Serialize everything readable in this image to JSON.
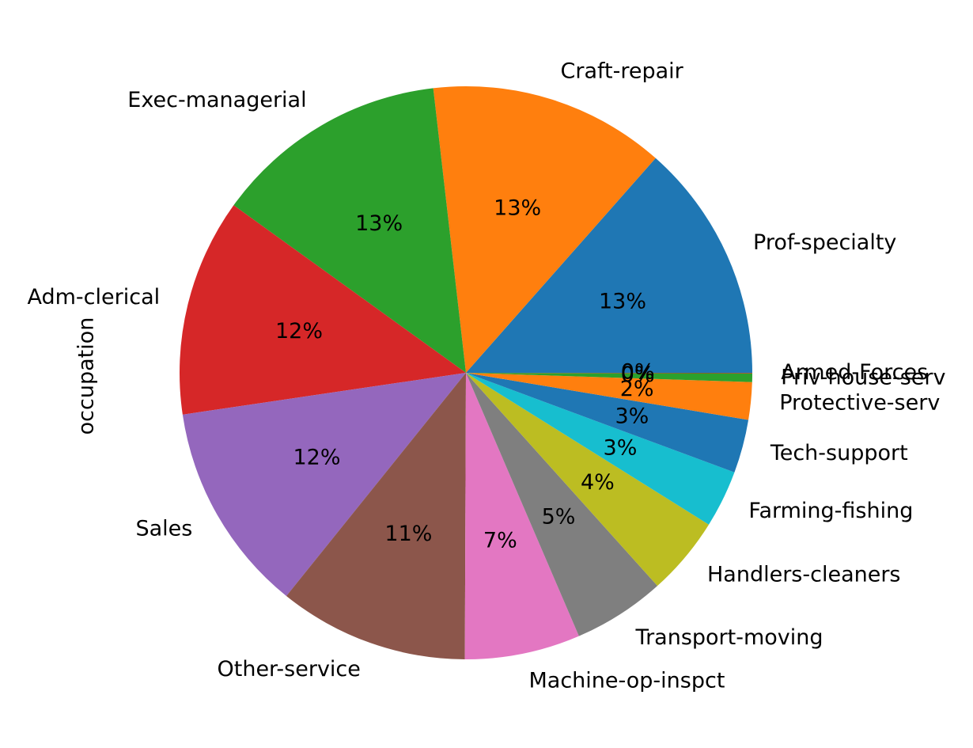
{
  "chart_data": {
    "type": "pie",
    "ylabel": "occupation",
    "autopct_format": "{pct}%",
    "categories": [
      "Prof-specialty",
      "Craft-repair",
      "Exec-managerial",
      "Adm-clerical",
      "Sales",
      "Other-service",
      "Machine-op-inspct",
      "Transport-moving",
      "Handlers-cleaners",
      "Farming-fishing",
      "Tech-support",
      "Protective-serv",
      "Priv-house-serv",
      "Armed-Forces"
    ],
    "values": [
      4140,
      4099,
      4066,
      3770,
      3650,
      3295,
      2002,
      1597,
      1370,
      994,
      928,
      649,
      149,
      9
    ],
    "pct_labels": [
      "13%",
      "13%",
      "13%",
      "12%",
      "12%",
      "11%",
      "7%",
      "5%",
      "4%",
      "3%",
      "3%",
      "2%",
      "0%",
      "0%"
    ],
    "colors": [
      "#1f77b4",
      "#ff7f0e",
      "#2ca02c",
      "#d62728",
      "#9467bd",
      "#8c564b",
      "#e377c2",
      "#7f7f7f",
      "#bcbd22",
      "#17becf",
      "#1f77b4",
      "#ff7f0e",
      "#2ca02c",
      "#d62728"
    ],
    "start_angle_deg": 0,
    "direction": "counterclockwise",
    "legend": "none"
  }
}
